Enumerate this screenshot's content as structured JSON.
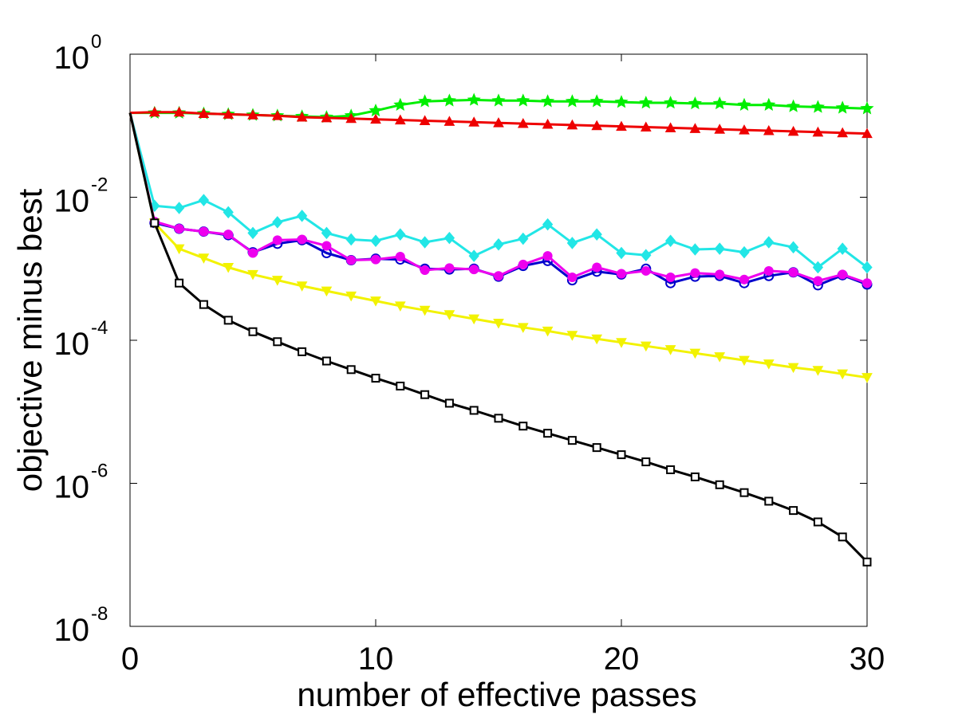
{
  "chart_data": {
    "type": "line",
    "title": "",
    "xlabel": "number of effective passes",
    "ylabel": "objective minus best",
    "xlim": [
      0,
      30
    ],
    "ylim_log10": [
      -8,
      0
    ],
    "yscale": "log",
    "grid": false,
    "x_ticks": [
      {
        "value": 0,
        "label": "0"
      },
      {
        "value": 10,
        "label": "10"
      },
      {
        "value": 20,
        "label": "20"
      },
      {
        "value": 30,
        "label": "30"
      }
    ],
    "y_ticks": [
      {
        "value": 0,
        "base": "10",
        "exponent": "0"
      },
      {
        "value": -2,
        "base": "10",
        "exponent": "-2"
      },
      {
        "value": -4,
        "base": "10",
        "exponent": "-4"
      },
      {
        "value": -6,
        "base": "10",
        "exponent": "-6"
      },
      {
        "value": -8,
        "base": "10",
        "exponent": "-8"
      }
    ],
    "x": [
      0,
      1,
      2,
      3,
      4,
      5,
      6,
      7,
      8,
      9,
      10,
      11,
      12,
      13,
      14,
      15,
      16,
      17,
      18,
      19,
      20,
      21,
      22,
      23,
      24,
      25,
      26,
      27,
      28,
      29,
      30
    ],
    "series": [
      {
        "name": "green",
        "color": "#00ee00",
        "marker": "star",
        "log10_values": [
          -0.82,
          -0.82,
          -0.82,
          -0.83,
          -0.84,
          -0.85,
          -0.86,
          -0.87,
          -0.88,
          -0.86,
          -0.79,
          -0.71,
          -0.66,
          -0.65,
          -0.64,
          -0.65,
          -0.65,
          -0.66,
          -0.66,
          -0.66,
          -0.67,
          -0.68,
          -0.68,
          -0.69,
          -0.69,
          -0.71,
          -0.71,
          -0.73,
          -0.74,
          -0.75,
          -0.76
        ]
      },
      {
        "name": "red",
        "color": "#ee0000",
        "marker": "triangle-up",
        "log10_values": [
          -0.82,
          -0.81,
          -0.81,
          -0.83,
          -0.84,
          -0.85,
          -0.86,
          -0.88,
          -0.89,
          -0.9,
          -0.91,
          -0.92,
          -0.93,
          -0.94,
          -0.95,
          -0.96,
          -0.97,
          -0.98,
          -0.99,
          -1.0,
          -1.01,
          -1.02,
          -1.03,
          -1.04,
          -1.05,
          -1.06,
          -1.07,
          -1.08,
          -1.09,
          -1.1,
          -1.11
        ]
      },
      {
        "name": "cyan",
        "color": "#22e6e6",
        "marker": "diamond",
        "log10_values": [
          -0.82,
          -2.12,
          -2.15,
          -2.04,
          -2.21,
          -2.5,
          -2.35,
          -2.26,
          -2.5,
          -2.59,
          -2.61,
          -2.52,
          -2.63,
          -2.57,
          -2.82,
          -2.66,
          -2.58,
          -2.38,
          -2.64,
          -2.52,
          -2.78,
          -2.81,
          -2.61,
          -2.73,
          -2.72,
          -2.77,
          -2.63,
          -2.7,
          -2.98,
          -2.72,
          -2.98
        ]
      },
      {
        "name": "blue",
        "color": "#0000cc",
        "marker": "circle",
        "log10_values": [
          -0.82,
          -2.36,
          -2.44,
          -2.48,
          -2.53,
          -2.77,
          -2.65,
          -2.6,
          -2.78,
          -2.88,
          -2.86,
          -2.87,
          -3.0,
          -3.01,
          -3.0,
          -3.11,
          -2.96,
          -2.89,
          -3.16,
          -3.04,
          -3.08,
          -3.0,
          -3.2,
          -3.11,
          -3.1,
          -3.2,
          -3.1,
          -3.05,
          -3.23,
          -3.09,
          -3.22
        ]
      },
      {
        "name": "magenta",
        "color": "#ee00ee",
        "marker": "circle-filled",
        "log10_values": [
          -0.82,
          -2.34,
          -2.44,
          -2.48,
          -2.52,
          -2.78,
          -2.6,
          -2.59,
          -2.68,
          -2.88,
          -2.87,
          -2.83,
          -3.02,
          -2.99,
          -3.01,
          -3.1,
          -2.94,
          -2.82,
          -3.12,
          -2.98,
          -3.07,
          -3.03,
          -3.12,
          -3.06,
          -3.08,
          -3.15,
          -3.03,
          -3.05,
          -3.17,
          -3.08,
          -3.2
        ]
      },
      {
        "name": "yellow",
        "color": "#f2f200",
        "marker": "triangle-down",
        "log10_values": [
          -0.82,
          -2.36,
          -2.72,
          -2.85,
          -2.98,
          -3.08,
          -3.16,
          -3.24,
          -3.31,
          -3.38,
          -3.45,
          -3.52,
          -3.58,
          -3.64,
          -3.7,
          -3.76,
          -3.82,
          -3.87,
          -3.93,
          -3.98,
          -4.03,
          -4.08,
          -4.13,
          -4.18,
          -4.23,
          -4.28,
          -4.33,
          -4.38,
          -4.42,
          -4.47,
          -4.52
        ]
      },
      {
        "name": "black",
        "color": "#000000",
        "marker": "square",
        "log10_values": [
          -0.82,
          -2.36,
          -3.2,
          -3.5,
          -3.72,
          -3.88,
          -4.02,
          -4.16,
          -4.29,
          -4.41,
          -4.53,
          -4.64,
          -4.76,
          -4.88,
          -4.98,
          -5.09,
          -5.2,
          -5.3,
          -5.4,
          -5.5,
          -5.6,
          -5.7,
          -5.81,
          -5.91,
          -6.02,
          -6.13,
          -6.25,
          -6.38,
          -6.54,
          -6.75,
          -7.1
        ]
      }
    ]
  }
}
